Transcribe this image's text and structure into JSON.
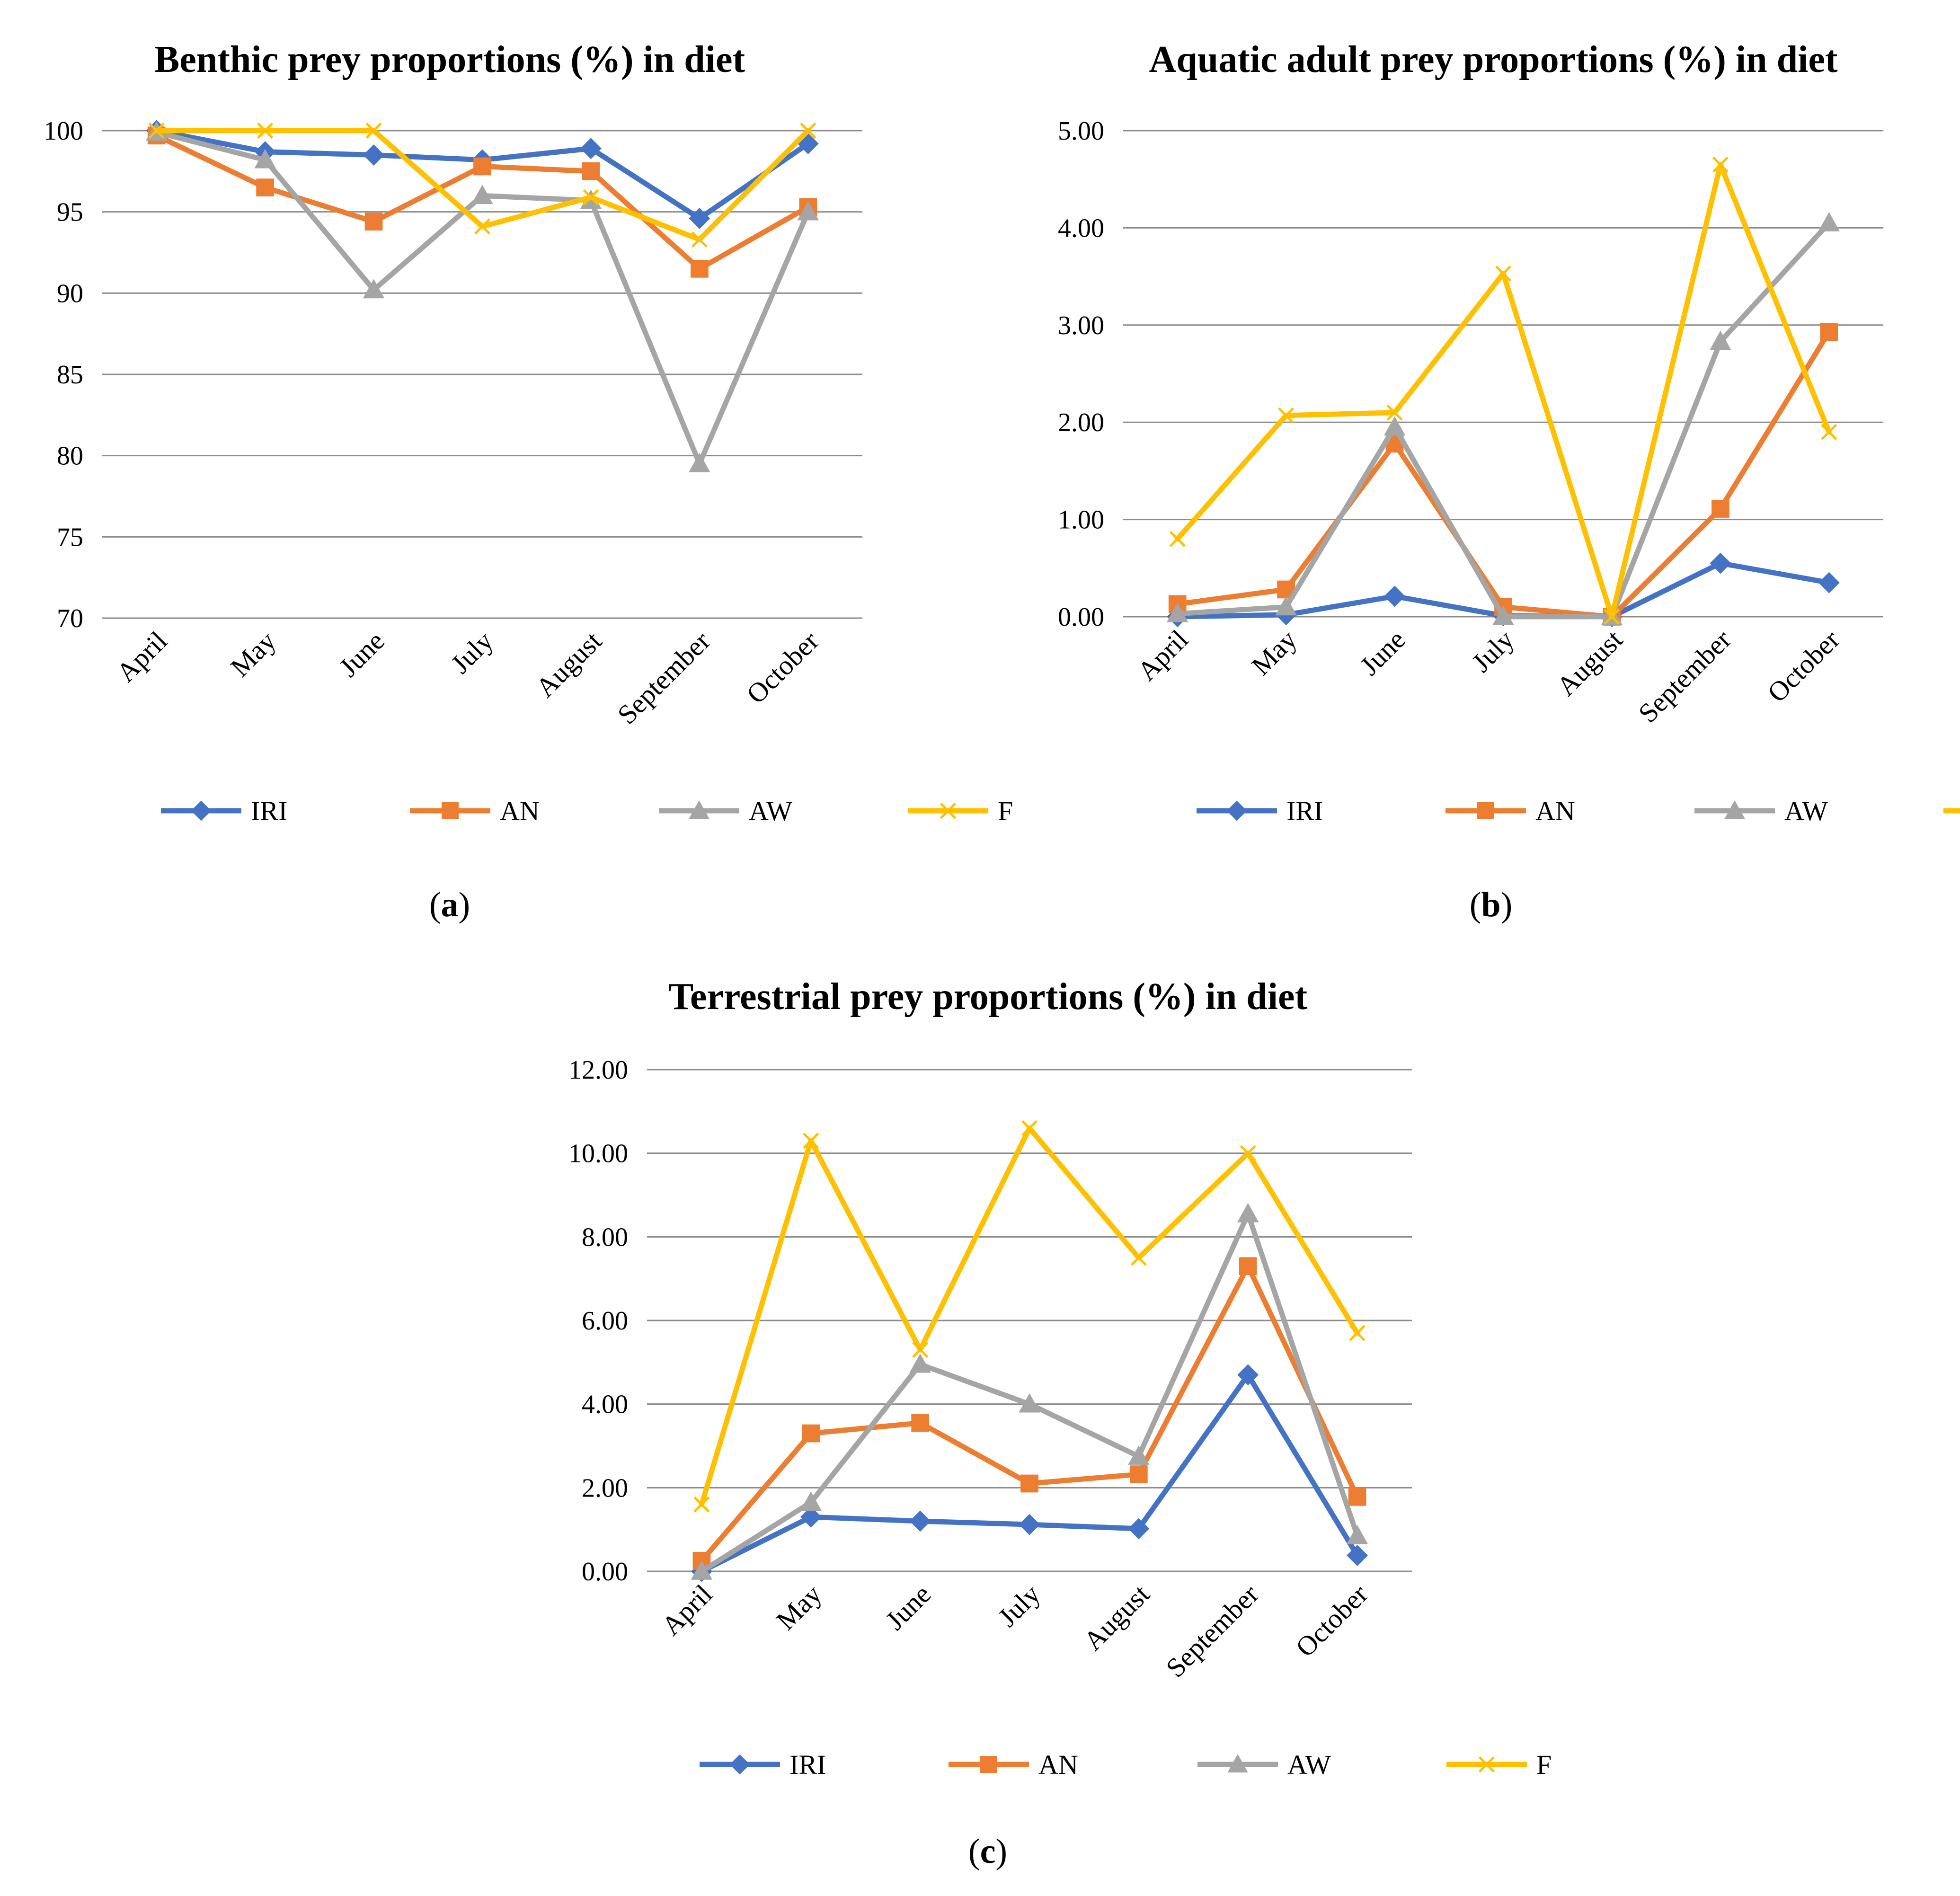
{
  "figure": {
    "panels": [
      {
        "label_open": "(",
        "label_letter": "a",
        "label_close": ")"
      },
      {
        "label_open": "(",
        "label_letter": "b",
        "label_close": ")"
      },
      {
        "label_open": "(",
        "label_letter": "c",
        "label_close": ")"
      }
    ]
  },
  "chart_data": [
    {
      "type": "line",
      "title": "Benthic prey proportions (%) in diet",
      "categories": [
        "April",
        "May",
        "June",
        "July",
        "August",
        "September",
        "October"
      ],
      "ylim": [
        70,
        100
      ],
      "yticks": [
        "70",
        "75",
        "80",
        "85",
        "90",
        "95",
        "100"
      ],
      "grid": true,
      "legend": "bottom",
      "series": [
        {
          "name": "IRI",
          "color": "#4472C4",
          "marker": "diamond",
          "values": [
            100,
            98.7,
            98.5,
            98.2,
            98.9,
            94.6,
            99.2
          ]
        },
        {
          "name": "AN",
          "color": "#ED7D31",
          "marker": "square",
          "values": [
            99.7,
            96.5,
            94.4,
            97.8,
            97.5,
            91.5,
            95.3
          ]
        },
        {
          "name": "AW",
          "color": "#A5A5A5",
          "marker": "triangle",
          "values": [
            99.9,
            98.2,
            90.2,
            96.0,
            95.7,
            79.5,
            95.0
          ]
        },
        {
          "name": "F",
          "color": "#FFC000",
          "marker": "x",
          "values": [
            100,
            100,
            100,
            94.1,
            95.9,
            93.3,
            100
          ]
        }
      ]
    },
    {
      "type": "line",
      "title": "Aquatic adult prey proportions (%) in diet",
      "categories": [
        "April",
        "May",
        "June",
        "July",
        "August",
        "September",
        "October"
      ],
      "ylim": [
        0,
        5
      ],
      "yticks": [
        "0.00",
        "1.00",
        "2.00",
        "3.00",
        "4.00",
        "5.00"
      ],
      "grid": true,
      "legend": "bottom",
      "series": [
        {
          "name": "IRI",
          "color": "#4472C4",
          "marker": "diamond",
          "values": [
            0.0,
            0.02,
            0.21,
            0.01,
            0.0,
            0.55,
            0.35
          ]
        },
        {
          "name": "AN",
          "color": "#ED7D31",
          "marker": "square",
          "values": [
            0.13,
            0.28,
            1.78,
            0.1,
            0.0,
            1.11,
            2.93
          ]
        },
        {
          "name": "AW",
          "color": "#A5A5A5",
          "marker": "triangle",
          "values": [
            0.03,
            0.1,
            1.95,
            0.0,
            0.0,
            2.83,
            4.05
          ]
        },
        {
          "name": "F",
          "color": "#FFC000",
          "marker": "x",
          "values": [
            0.8,
            2.07,
            2.1,
            3.53,
            0.0,
            4.65,
            1.9
          ]
        }
      ]
    },
    {
      "type": "line",
      "title": "Terrestrial prey proportions (%) in diet",
      "categories": [
        "April",
        "May",
        "June",
        "July",
        "August",
        "September",
        "October"
      ],
      "ylim": [
        0,
        12
      ],
      "yticks": [
        "0.00",
        "2.00",
        "4.00",
        "6.00",
        "8.00",
        "10.00",
        "12.00"
      ],
      "grid": true,
      "legend": "bottom",
      "series": [
        {
          "name": "IRI",
          "color": "#4472C4",
          "marker": "diamond",
          "values": [
            0.0,
            1.3,
            1.2,
            1.12,
            1.02,
            4.7,
            0.38
          ]
        },
        {
          "name": "AN",
          "color": "#ED7D31",
          "marker": "square",
          "values": [
            0.25,
            3.3,
            3.55,
            2.1,
            2.32,
            7.3,
            1.78
          ]
        },
        {
          "name": "AW",
          "color": "#A5A5A5",
          "marker": "triangle",
          "values": [
            0.0,
            1.65,
            4.95,
            4.0,
            2.75,
            8.55,
            0.85
          ]
        },
        {
          "name": "F",
          "color": "#FFC000",
          "marker": "x",
          "values": [
            1.6,
            10.3,
            5.3,
            10.6,
            7.5,
            10.0,
            5.7
          ]
        }
      ]
    }
  ]
}
